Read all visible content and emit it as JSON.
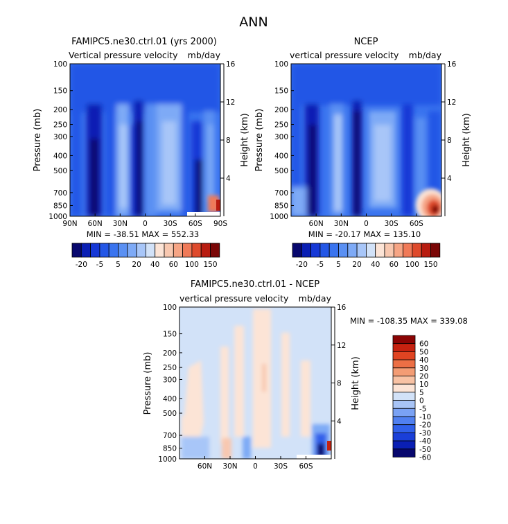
{
  "page_title": "ANN",
  "palette": {
    "full_field": [
      "#08086e",
      "#0a1fb4",
      "#1638d6",
      "#2457e6",
      "#3a74ef",
      "#5a90f3",
      "#7eaaf6",
      "#a8c6f8",
      "#d2e2f8",
      "#fce4d6",
      "#f8c8b0",
      "#f6a585",
      "#f07a58",
      "#de4a2c",
      "#b81c10",
      "#7a0606"
    ],
    "difference": [
      "#08086e",
      "#0a1fb4",
      "#1a3fd8",
      "#3060ea",
      "#5080f0",
      "#7aa2f4",
      "#a8c4f6",
      "#d2e2f8",
      "#fce4d6",
      "#f8c2a4",
      "#f39c74",
      "#ec6f45",
      "#e04422",
      "#c62210",
      "#8a0404"
    ]
  },
  "panels": [
    {
      "id": "model",
      "title": "FAMIPC5.ne30.ctrl.01 (yrs 2000)",
      "left_label": "Vertical pressure velocity",
      "right_label": "mb/day",
      "ylabel": "Pressure (mb)",
      "ylabel_right": "Height (km)",
      "stats": "MIN = -38.51   MAX = 552.33",
      "colorbar_labels": [
        "-20",
        "-5",
        "5",
        "20",
        "40",
        "60",
        "100",
        "150"
      ]
    },
    {
      "id": "obs",
      "title": "NCEP",
      "left_label": "vertical pressure velocity",
      "right_label": "mb/day",
      "ylabel": "Pressure (mb)",
      "ylabel_right": "Height (km)",
      "stats": "MIN = -20.17   MAX = 135.10",
      "colorbar_labels": [
        "-20",
        "-5",
        "5",
        "20",
        "40",
        "60",
        "100",
        "150"
      ]
    },
    {
      "id": "diff",
      "title": "FAMIPC5.ne30.ctrl.01 - NCEP",
      "left_label": "vertical pressure velocity",
      "right_label": "mb/day",
      "ylabel": "Pressure (mb)",
      "ylabel_right": "Height (km)",
      "stats": "MIN = -108.35   MAX = 339.08",
      "colorbar_labels": [
        "60",
        "50",
        "40",
        "30",
        "20",
        "10",
        "5",
        "0",
        "-5",
        "-10",
        "-20",
        "-30",
        "-40",
        "-50",
        "-60"
      ]
    }
  ],
  "chart_data": [
    {
      "type": "heatmap",
      "title": "FAMIPC5.ne30.ctrl.01 (yrs 2000)",
      "ylabel": "Pressure (mb)",
      "y_ticks": [
        "100",
        "150",
        "200",
        "250",
        "300",
        "400",
        "500",
        "700",
        "850",
        "1000"
      ],
      "y_right_ticks": [
        "16",
        "12",
        "8",
        "4"
      ],
      "x_ticks": [
        "90N",
        "60N",
        "30N",
        "0",
        "30S",
        "60S",
        "90S"
      ],
      "contour_levels": [
        "-20",
        "-5",
        "5",
        "20",
        "40",
        "60",
        "100",
        "150"
      ],
      "min": -38.51,
      "max": 552.33
    },
    {
      "type": "heatmap",
      "title": "NCEP",
      "ylabel": "Pressure (mb)",
      "y_ticks": [
        "100",
        "150",
        "200",
        "250",
        "300",
        "400",
        "500",
        "700",
        "850",
        "1000"
      ],
      "y_right_ticks": [
        "16",
        "12",
        "8",
        "4"
      ],
      "x_ticks": [
        "60N",
        "30N",
        "0",
        "30S",
        "60S"
      ],
      "contour_levels": [
        "-20",
        "-5",
        "5",
        "20",
        "40",
        "60",
        "100",
        "150"
      ],
      "min": -20.17,
      "max": 135.1
    },
    {
      "type": "heatmap",
      "title": "FAMIPC5.ne30.ctrl.01 - NCEP",
      "ylabel": "Pressure (mb)",
      "y_ticks": [
        "100",
        "150",
        "200",
        "250",
        "300",
        "400",
        "500",
        "700",
        "850",
        "1000"
      ],
      "y_right_ticks": [
        "16",
        "12",
        "8",
        "4"
      ],
      "x_ticks": [
        "60N",
        "30N",
        "0",
        "30S",
        "60S"
      ],
      "contour_levels": [
        "60",
        "50",
        "40",
        "30",
        "20",
        "10",
        "5",
        "0",
        "-5",
        "-10",
        "-20",
        "-30",
        "-40",
        "-50",
        "-60"
      ],
      "min": -108.35,
      "max": 339.08
    }
  ]
}
